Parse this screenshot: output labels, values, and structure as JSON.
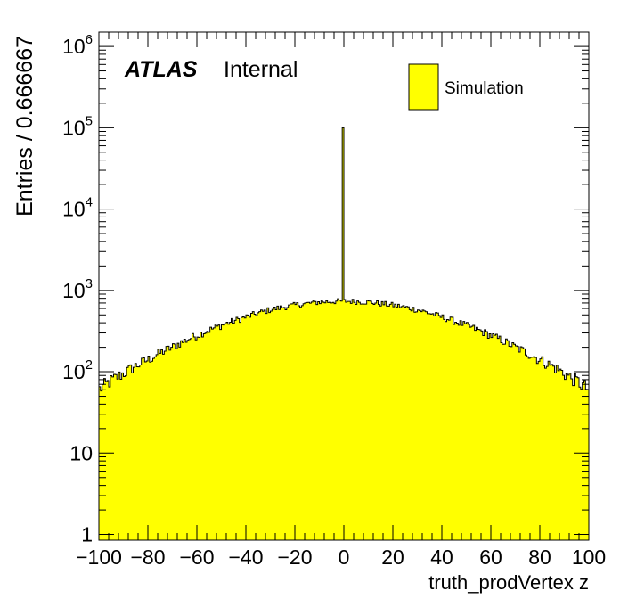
{
  "chart_data": {
    "type": "histogram",
    "title": "",
    "xlabel": "truth_prodVertex z",
    "ylabel": "Entries / 0.666667",
    "xlim": [
      -100,
      100
    ],
    "ylim": [
      0.85,
      1500000
    ],
    "ylog": true,
    "bin_width": 0.666667,
    "fill_color": "#ffff00",
    "line_color": "#000000",
    "xticks": [
      "−100",
      "−80",
      "−60",
      "−40",
      "−20",
      "0",
      "20",
      "40",
      "60",
      "80",
      "100"
    ],
    "xtick_values": [
      -100,
      -80,
      -60,
      -40,
      -20,
      0,
      20,
      40,
      60,
      80,
      100
    ],
    "yticks": [
      {
        "value": 1,
        "base": "1",
        "exp": ""
      },
      {
        "value": 10,
        "base": "10",
        "exp": ""
      },
      {
        "value": 100,
        "base": "10",
        "exp": "2"
      },
      {
        "value": 1000,
        "base": "10",
        "exp": "3"
      },
      {
        "value": 10000,
        "base": "10",
        "exp": "4"
      },
      {
        "value": 100000,
        "base": "10",
        "exp": "5"
      },
      {
        "value": 1000000,
        "base": "10",
        "exp": "6"
      }
    ],
    "shape_profile": {
      "x": [
        -100,
        -90,
        -80,
        -70,
        -60,
        -50,
        -40,
        -30,
        -20,
        -10,
        0,
        10,
        20,
        30,
        40,
        50,
        60,
        70,
        80,
        90,
        100
      ],
      "y": [
        60,
        95,
        140,
        200,
        280,
        370,
        470,
        580,
        660,
        720,
        740,
        720,
        660,
        580,
        470,
        370,
        280,
        200,
        140,
        95,
        60
      ]
    },
    "peak": {
      "x": 0,
      "y": 100000
    },
    "legend": {
      "position": "top-right",
      "entries": [
        {
          "name": "Simulation",
          "color": "#ffff00"
        }
      ]
    },
    "labels": {
      "atlas": "ATLAS",
      "status": "Internal"
    }
  }
}
